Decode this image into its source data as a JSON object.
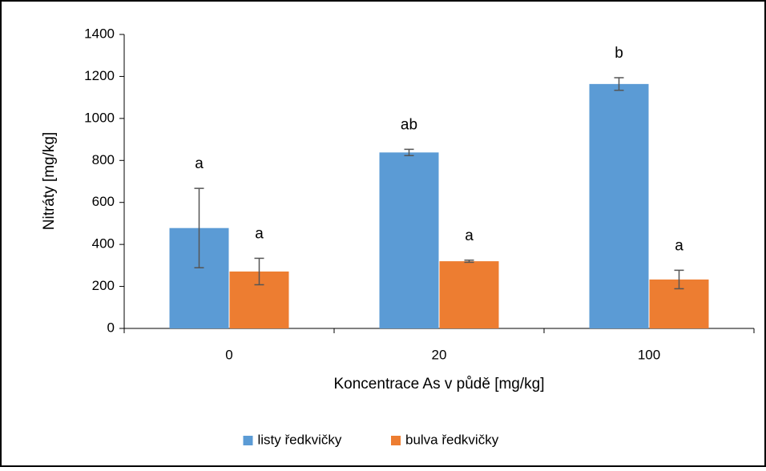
{
  "chart_data": {
    "type": "bar",
    "x_label": "Koncentrace As v půdě [mg/kg]",
    "y_label": "Nitráty [mg/kg]",
    "categories": [
      "0",
      "20",
      "100"
    ],
    "series": [
      {
        "name": "listy ředkvičky",
        "color": "#5b9bd5",
        "values": [
          478,
          838,
          1164
        ],
        "errors": [
          189,
          15,
          30
        ],
        "letters": [
          "a",
          "ab",
          "b"
        ]
      },
      {
        "name": "bulva ředkvičky",
        "color": "#ed7d31",
        "values": [
          271,
          320,
          233
        ],
        "errors": [
          63,
          5,
          44
        ],
        "letters": [
          "a",
          "a",
          "a"
        ]
      }
    ],
    "ylim": [
      0,
      1400
    ],
    "yticks": [
      0,
      200,
      400,
      600,
      800,
      1000,
      1200,
      1400
    ],
    "legend": "bottom"
  }
}
